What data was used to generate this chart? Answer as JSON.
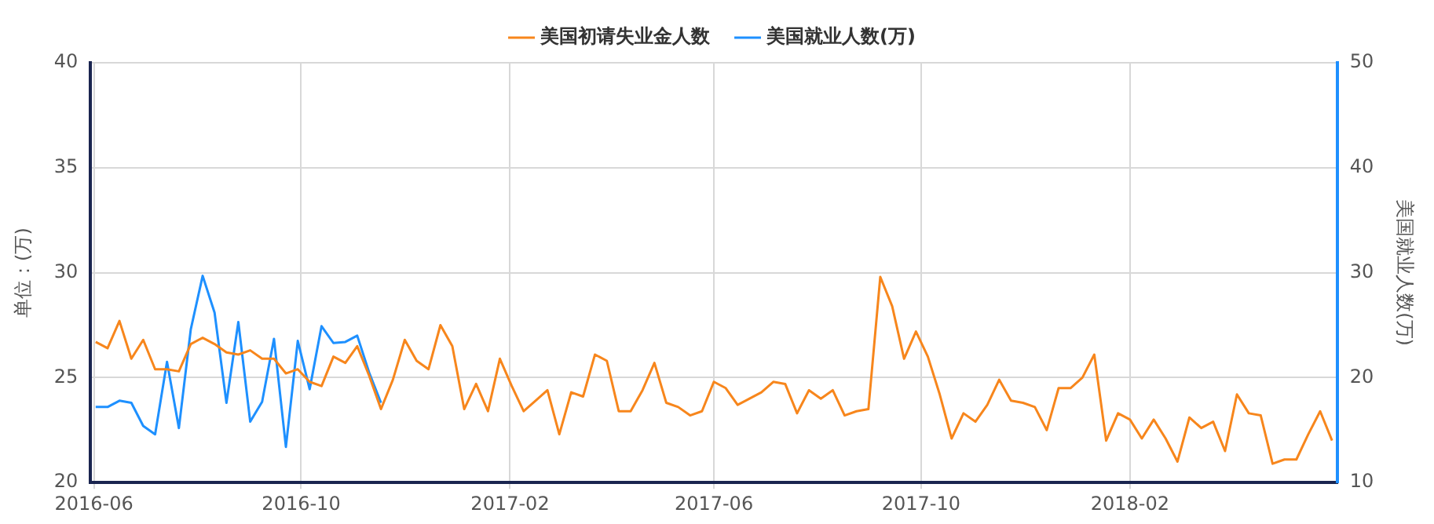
{
  "chart_data": {
    "type": "line",
    "ylabel": "单位：(万)",
    "y2label": "美国就业人数(万)",
    "x": [
      "2016-06-02",
      "2016-06-09",
      "2016-06-16",
      "2016-06-23",
      "2016-06-30",
      "2016-07-07",
      "2016-07-14",
      "2016-07-21",
      "2016-07-28",
      "2016-08-04",
      "2016-08-11",
      "2016-08-18",
      "2016-08-25",
      "2016-09-01",
      "2016-09-08",
      "2016-09-15",
      "2016-09-22",
      "2016-09-29",
      "2016-10-06",
      "2016-10-13",
      "2016-10-20",
      "2016-10-27",
      "2016-11-03",
      "2016-11-10",
      "2016-11-17",
      "2016-11-24",
      "2016-12-01",
      "2016-12-08",
      "2016-12-15",
      "2016-12-22",
      "2016-12-29",
      "2017-01-05",
      "2017-01-12",
      "2017-01-19",
      "2017-01-26",
      "2017-02-02",
      "2017-02-09",
      "2017-02-16",
      "2017-02-23",
      "2017-03-02",
      "2017-03-09",
      "2017-03-16",
      "2017-03-23",
      "2017-03-30",
      "2017-04-06",
      "2017-04-13",
      "2017-04-20",
      "2017-04-27",
      "2017-05-04",
      "2017-05-11",
      "2017-05-18",
      "2017-05-25",
      "2017-06-01",
      "2017-06-08",
      "2017-06-15",
      "2017-06-22",
      "2017-06-29",
      "2017-07-06",
      "2017-07-13",
      "2017-07-20",
      "2017-07-27",
      "2017-08-03",
      "2017-08-10",
      "2017-08-17",
      "2017-08-24",
      "2017-08-31",
      "2017-09-07",
      "2017-09-14",
      "2017-09-21",
      "2017-09-28",
      "2017-10-05",
      "2017-10-12",
      "2017-10-19",
      "2017-10-26",
      "2017-11-02",
      "2017-11-09",
      "2017-11-16",
      "2017-11-23",
      "2017-11-30",
      "2017-12-07",
      "2017-12-14",
      "2017-12-21",
      "2017-12-28",
      "2018-01-04",
      "2018-01-11",
      "2018-01-18",
      "2018-01-25",
      "2018-02-01",
      "2018-02-08",
      "2018-02-15",
      "2018-02-22",
      "2018-03-01",
      "2018-03-08",
      "2018-03-15",
      "2018-03-22",
      "2018-03-29",
      "2018-04-05",
      "2018-04-12",
      "2018-04-19",
      "2018-04-26",
      "2018-05-03",
      "2018-05-10",
      "2018-05-17",
      "2018-05-24",
      "2018-05-31"
    ],
    "series": [
      {
        "name": "美国初请失业金人数",
        "color": "#f7861c",
        "values": [
          26.7,
          26.4,
          27.7,
          25.9,
          26.8,
          25.4,
          25.4,
          25.3,
          26.6,
          26.9,
          26.6,
          26.2,
          26.1,
          26.3,
          25.9,
          25.9,
          25.2,
          25.4,
          24.8,
          24.6,
          26.0,
          25.7,
          26.5,
          25.1,
          23.5,
          24.9,
          26.8,
          25.8,
          25.4,
          27.5,
          26.5,
          23.5,
          24.7,
          23.4,
          25.9,
          24.6,
          23.4,
          23.9,
          24.4,
          22.3,
          24.3,
          24.1,
          26.1,
          25.8,
          23.4,
          23.4,
          24.4,
          25.7,
          23.8,
          23.6,
          23.2,
          23.4,
          24.8,
          24.5,
          23.7,
          24.0,
          24.3,
          24.8,
          24.7,
          23.3,
          24.4,
          24.0,
          24.4,
          23.2,
          23.4,
          23.5,
          29.8,
          28.4,
          25.9,
          27.2,
          26.0,
          24.2,
          22.1,
          23.3,
          22.9,
          23.7,
          24.9,
          23.9,
          23.8,
          23.6,
          22.5,
          24.5,
          24.5,
          25.0,
          26.1,
          22.0,
          23.3,
          23.0,
          22.1,
          23.0,
          22.1,
          21.0,
          23.1,
          22.6,
          22.9,
          21.5,
          24.2,
          23.3,
          23.2,
          20.9,
          21.1,
          21.1,
          22.3,
          23.4,
          22.0
        ]
      },
      {
        "name": "美国就业人数(万)",
        "color": "#1e90ff",
        "axis": "y2",
        "x": [
          "2016-06-02",
          "2016-06-09",
          "2016-06-16",
          "2016-06-23",
          "2016-06-30",
          "2016-07-07",
          "2016-07-14",
          "2016-07-21",
          "2016-07-28",
          "2016-08-04",
          "2016-08-11",
          "2016-08-18",
          "2016-08-25",
          "2016-09-01",
          "2016-09-08",
          "2016-09-15",
          "2016-09-22",
          "2016-09-29",
          "2016-10-06",
          "2016-10-13",
          "2016-10-20",
          "2016-10-27",
          "2016-11-03",
          "2016-11-10",
          "2016-11-17"
        ],
        "values": [
          17.2,
          17.2,
          17.8,
          17.6,
          15.4,
          14.6,
          21.5,
          15.2,
          24.6,
          29.7,
          26.2,
          17.6,
          25.3,
          15.8,
          17.7,
          23.7,
          13.4,
          23.5,
          18.9,
          24.9,
          23.3,
          23.4,
          24.0,
          20.5,
          17.6
        ]
      }
    ],
    "xlim": [
      "2016-05-30",
      "2018-06-03"
    ],
    "xticks": [
      {
        "value": "2016-06-01",
        "label": "2016-06"
      },
      {
        "value": "2016-10-01",
        "label": "2016-10"
      },
      {
        "value": "2017-02-01",
        "label": "2017-02"
      },
      {
        "value": "2017-06-01",
        "label": "2017-06"
      },
      {
        "value": "2017-10-01",
        "label": "2017-10"
      },
      {
        "value": "2018-02-01",
        "label": "2018-02"
      }
    ],
    "ylim": [
      20,
      40
    ],
    "yticks": [
      20,
      25,
      30,
      35,
      40
    ],
    "y2lim": [
      10,
      50
    ],
    "y2ticks": [
      10,
      20,
      30,
      40,
      50
    ],
    "grid": true,
    "legend": "top",
    "marker": "none",
    "line_style": "solid"
  }
}
